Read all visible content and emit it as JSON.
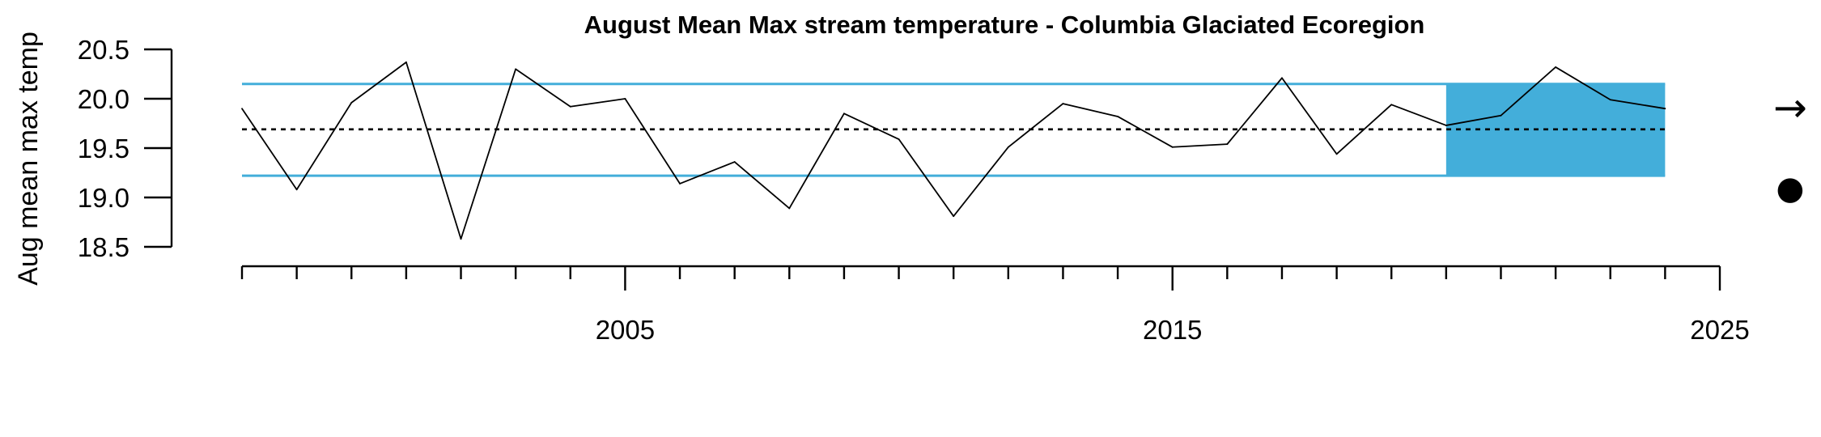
{
  "chart_data": {
    "type": "line",
    "title": "August Mean Max stream temperature - Columbia Glaciated Ecoregion",
    "ylabel": "Aug mean max temp",
    "xlabel": "",
    "xlim": [
      1998,
      2025
    ],
    "ylim": [
      18.5,
      20.5
    ],
    "x_tick_labels": [
      "2005",
      "2015",
      "2025"
    ],
    "y_tick_labels": [
      "18.5",
      "19.0",
      "19.5",
      "20.0",
      "20.5"
    ],
    "series": [
      {
        "x": [
          1998,
          1999,
          2000,
          2001,
          2002,
          2003,
          2004,
          2005,
          2006,
          2007,
          2008,
          2009,
          2010,
          2011,
          2012,
          2013,
          2014,
          2015,
          2016,
          2017,
          2018,
          2019,
          2020,
          2021,
          2022,
          2023,
          2024
        ],
        "values": [
          19.9,
          19.08,
          19.96,
          20.37,
          18.58,
          20.3,
          19.92,
          20.0,
          19.14,
          19.36,
          18.89,
          19.85,
          19.59,
          18.81,
          19.51,
          19.95,
          19.82,
          19.51,
          19.54,
          20.21,
          19.44,
          19.94,
          19.73,
          19.83,
          20.32,
          19.99,
          19.9
        ]
      }
    ],
    "mean_line": 19.69,
    "upper_sd_line": 20.15,
    "lower_sd_line": 19.22,
    "recent_window": [
      2020,
      2024
    ],
    "trend_symbol": "→",
    "mean_symbol": "●",
    "colors": {
      "band": "#43AEDA",
      "line": "#000000",
      "background": "#ffffff"
    }
  }
}
